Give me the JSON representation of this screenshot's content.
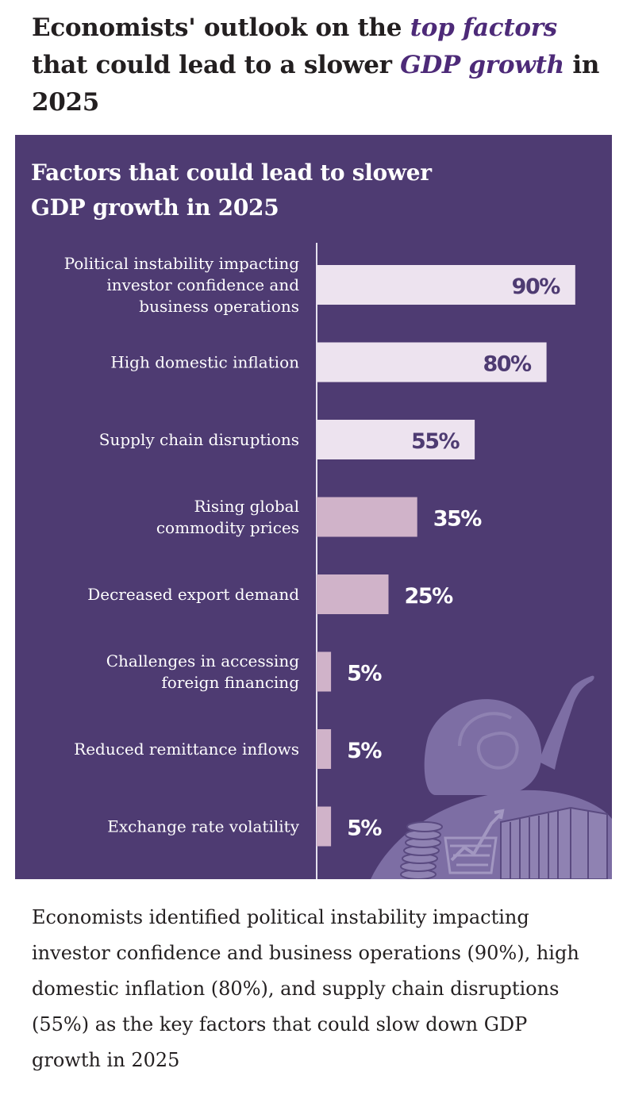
{
  "headline": {
    "part1": "Economists' outlook on the ",
    "highlight1": "top factors",
    "part2": " that could lead to a slower ",
    "highlight2": "GDP growth",
    "part3": " in 2025"
  },
  "colors": {
    "panel_bg": "#4e3b72",
    "accent": "#4d2a78",
    "bar_light": "#ede3ef",
    "bar_muted": "#d0b3c9",
    "illustration": "#7d6ea4"
  },
  "illustration": {
    "icons": [
      "snail-icon",
      "coin-stack-icon",
      "trend-basket-icon",
      "shipping-container-icon"
    ]
  },
  "chart_data": {
    "type": "bar",
    "orientation": "horizontal",
    "title": "Factors that could lead to slower GDP growth in 2025",
    "categories": [
      "Political instability impacting investor confidence and business operations",
      "High domestic inflation",
      "Supply chain disruptions",
      "Rising global commodity prices",
      "Decreased export demand",
      "Challenges in accessing foreign financing",
      "Reduced remittance inflows",
      "Exchange rate volatility"
    ],
    "label_lines": [
      [
        "Political instability impacting",
        "investor confidence and",
        "business operations"
      ],
      [
        "High domestic inflation"
      ],
      [
        "Supply chain disruptions"
      ],
      [
        "Rising global",
        "commodity prices"
      ],
      [
        "Decreased export demand"
      ],
      [
        "Challenges in accessing",
        "foreign financing"
      ],
      [
        "Reduced remittance inflows"
      ],
      [
        "Exchange rate volatility"
      ]
    ],
    "values": [
      90,
      80,
      55,
      35,
      25,
      5,
      5,
      5
    ],
    "value_labels": [
      "90%",
      "80%",
      "55%",
      "35%",
      "25%",
      "5%",
      "5%",
      "5%"
    ],
    "unit": "%",
    "xlim": [
      0,
      100
    ],
    "grid": false,
    "legend": "none"
  },
  "footer": {
    "text": "Economists identified political instability impacting investor confidence and business operations (90%), high domestic inflation (80%), and supply chain disruptions (55%) as the key factors that could slow down GDP growth in 2025"
  }
}
